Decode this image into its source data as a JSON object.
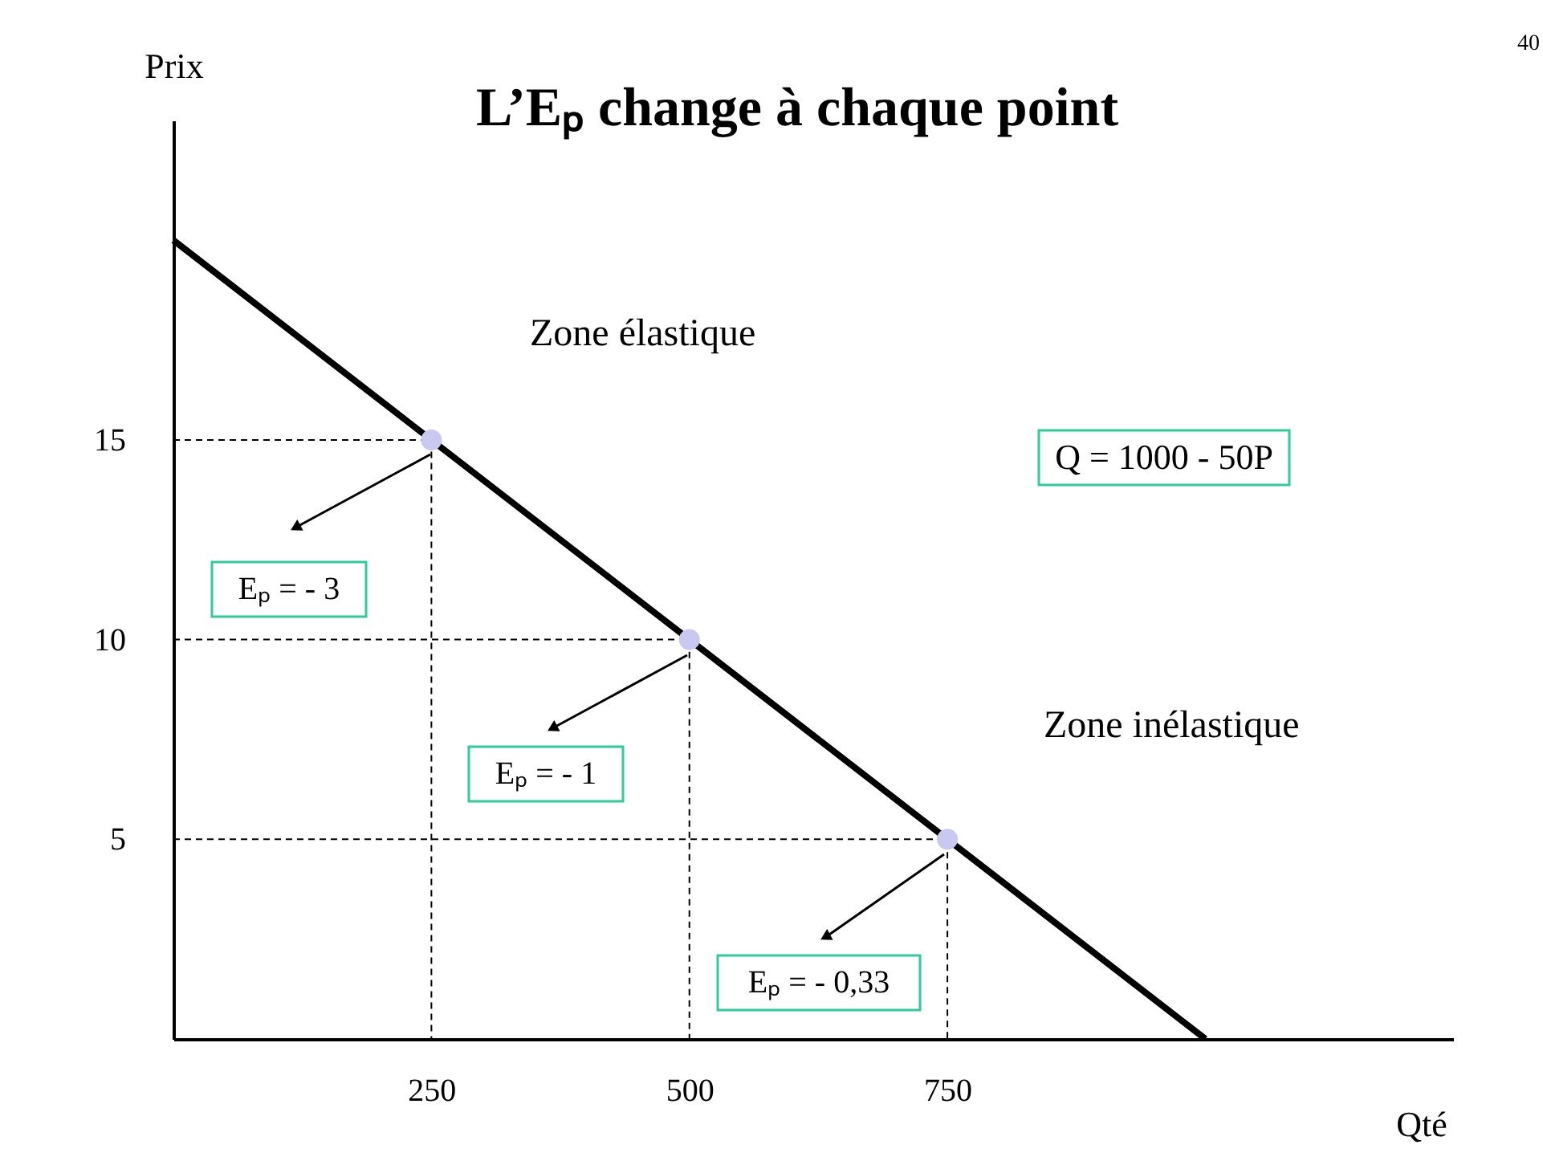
{
  "chart_data": {
    "type": "line",
    "title": "L’Eₚ change à chaque point",
    "xlabel": "Qté",
    "ylabel": "Prix",
    "xlim": [
      0,
      1240
    ],
    "ylim": [
      0,
      23
    ],
    "xticks": [
      250,
      500,
      750
    ],
    "yticks": [
      5,
      10,
      15
    ],
    "grid": false,
    "series": [
      {
        "color": "#000000",
        "line_style": "solid",
        "marker": "none",
        "x": [
          0,
          1000
        ],
        "values": [
          20,
          0
        ]
      },
      {
        "color": "#000000",
        "line_style": "dashed",
        "marker": "none",
        "x": [
          0,
          250,
          250
        ],
        "values": [
          15,
          15,
          0
        ]
      },
      {
        "color": "#000000",
        "line_style": "dashed",
        "marker": "none",
        "x": [
          0,
          500,
          500
        ],
        "values": [
          10,
          10,
          0
        ]
      },
      {
        "color": "#000000",
        "line_style": "dashed",
        "marker": "none",
        "x": [
          0,
          750,
          750
        ],
        "values": [
          5,
          5,
          0
        ]
      },
      {
        "type": "scatter",
        "color": "#c8c8f0",
        "marker": "circle",
        "x": [
          250,
          500,
          750
        ],
        "values": [
          15,
          10,
          5
        ]
      }
    ],
    "annotations": [
      "Eₚ = - 3",
      "Eₚ = - 1",
      "Eₚ = - 0,33",
      "Zone élastique",
      "Zone inélastique",
      "Q = 1000 - 50P",
      "40"
    ]
  }
}
